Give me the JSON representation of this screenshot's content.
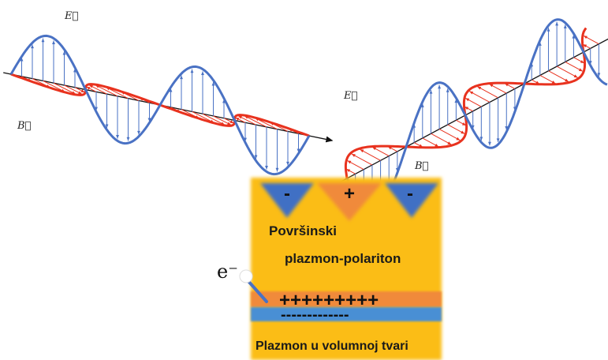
{
  "waves": {
    "left": {
      "e_label": "E⃗",
      "b_label": "B⃗"
    },
    "right": {
      "e_label": "E⃗",
      "b_label": "B⃗"
    }
  },
  "slab": {
    "surface_charges": [
      "-",
      "+",
      "-"
    ],
    "surface_title_1": "Površinski",
    "surface_title_2": "plazmon-polariton",
    "electron_label": "e⁻",
    "plus_row": "+++++++++",
    "minus_row": "-------------",
    "bulk_title": "Plazmon u volumnoj tvari"
  },
  "colors": {
    "e_field": "#4a72c4",
    "b_field": "#e8321e",
    "slab": "#fbbd19",
    "orange_band": "#f08a3a",
    "blue_band": "#4a8fd4",
    "axis": "#111111"
  }
}
